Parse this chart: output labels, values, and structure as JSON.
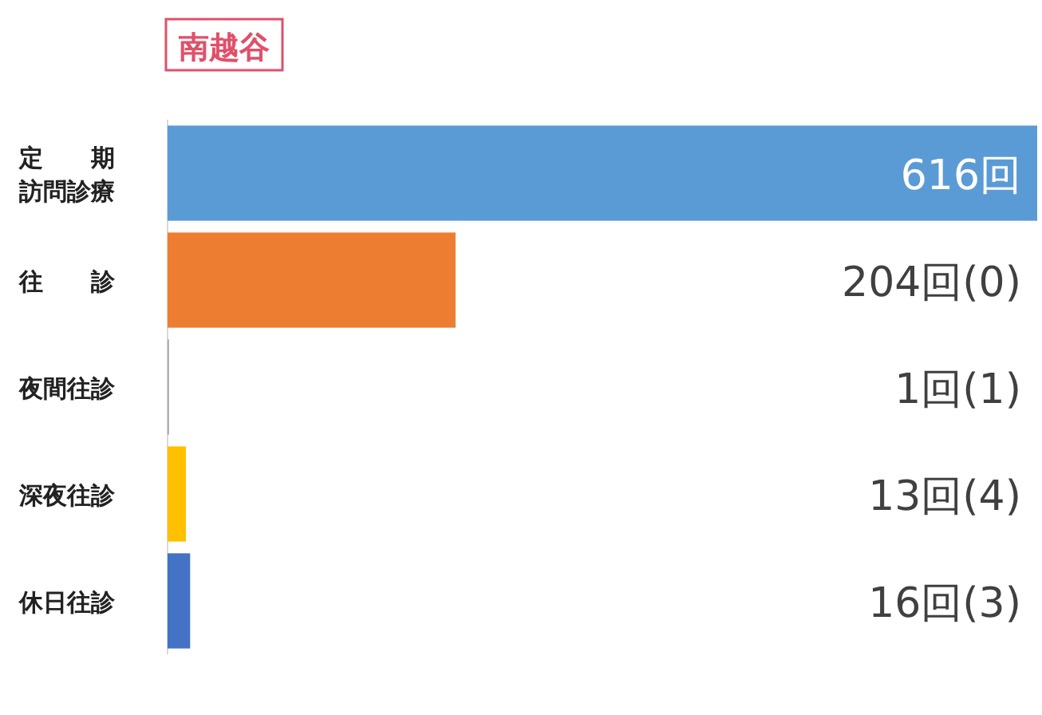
{
  "chart_data": {
    "type": "bar",
    "orientation": "horizontal",
    "title": "南越谷",
    "categories": [
      "定期訪問診療",
      "往診",
      "夜間往診",
      "深夜往診",
      "休日往診"
    ],
    "values": [
      616,
      204,
      1,
      13,
      16
    ],
    "colors": [
      "#5b9bd5",
      "#ed7d31",
      "#a5a5a5",
      "#ffc000",
      "#4472c4"
    ],
    "value_labels": [
      "616回",
      "204回(0)",
      "1回(1)",
      "13回(4)",
      "16回(3)"
    ]
  }
}
